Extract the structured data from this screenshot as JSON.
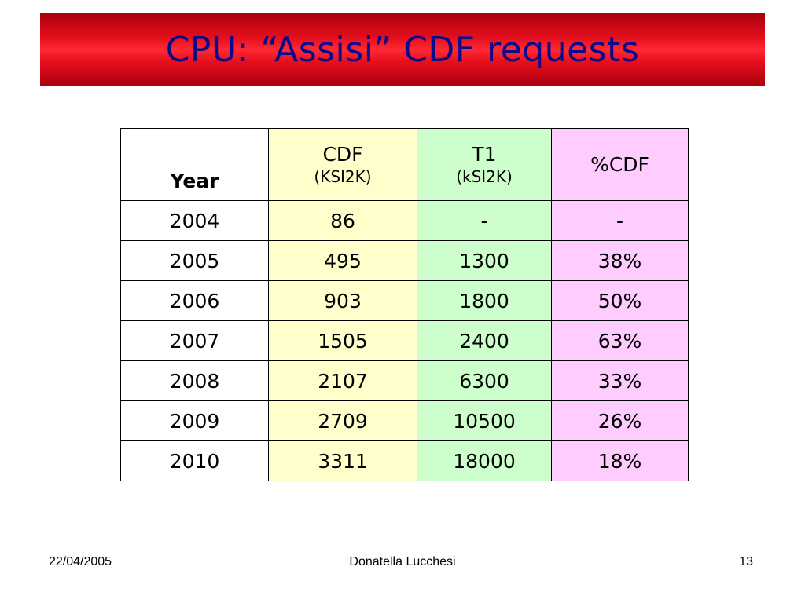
{
  "slide": {
    "title": "CPU: “Assisi” CDF requests"
  },
  "table": {
    "headers": {
      "year": "Year",
      "cdf": "CDF",
      "cdf_unit": "(KSI2K)",
      "t1": "T1",
      "t1_unit": "(kSI2K)",
      "pct": "%CDF"
    },
    "rows": [
      {
        "year": "2004",
        "cdf": "86",
        "t1": "-",
        "pct": "-"
      },
      {
        "year": "2005",
        "cdf": "495",
        "t1": "1300",
        "pct": "38%"
      },
      {
        "year": "2006",
        "cdf": "903",
        "t1": "1800",
        "pct": "50%"
      },
      {
        "year": "2007",
        "cdf": "1505",
        "t1": "2400",
        "pct": "63%"
      },
      {
        "year": "2008",
        "cdf": "2107",
        "t1": "6300",
        "pct": "33%"
      },
      {
        "year": "2009",
        "cdf": "2709",
        "t1": "10500",
        "pct": "26%"
      },
      {
        "year": "2010",
        "cdf": "3311",
        "t1": "18000",
        "pct": "18%"
      }
    ]
  },
  "footer": {
    "date": "22/04/2005",
    "author": "Donatella Lucchesi",
    "page": "13"
  },
  "colors": {
    "title_text": "#0a0a8c",
    "title_bar": "#e8101e",
    "cdf_column": "#ffffcc",
    "t1_column": "#ccffcc",
    "pct_column": "#ffccff"
  }
}
